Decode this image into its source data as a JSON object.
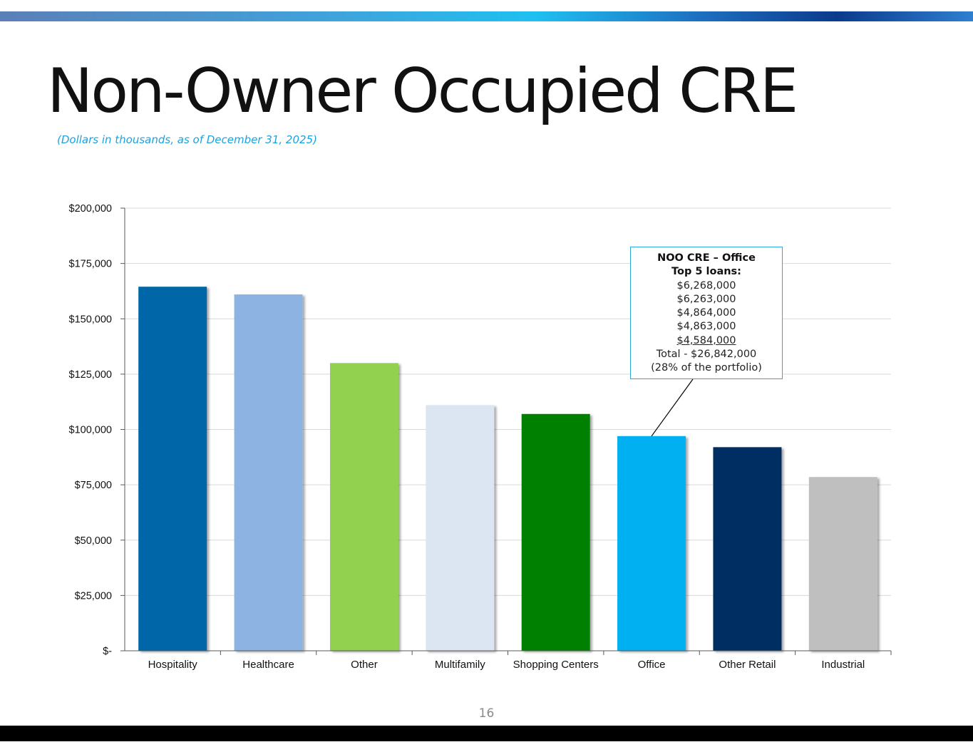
{
  "slide": {
    "title": "Non-Owner Occupied CRE",
    "subtitle": "(Dollars in thousands, as of December 31, 2025)",
    "page_number": "16"
  },
  "callout": {
    "heading": "NOO CRE – Office",
    "subheading": "Top 5 loans:",
    "loans": [
      "$6,268,000",
      "$6,263,000",
      "$4,864,000",
      "$4,863,000",
      "$4,584,000"
    ],
    "total": "Total - $26,842,000",
    "share": "(28% of the portfolio)",
    "target_category": "Office"
  },
  "chart_data": {
    "type": "bar",
    "title": "",
    "xlabel": "",
    "ylabel": "",
    "categories": [
      "Hospitality",
      "Healthcare",
      "Other",
      "Multifamily",
      "Shopping Centers",
      "Office",
      "Other Retail",
      "Industrial"
    ],
    "values": [
      164500,
      161000,
      130000,
      111000,
      107000,
      97000,
      92000,
      78500
    ],
    "colors": [
      "#0066a8",
      "#8db3e2",
      "#92d050",
      "#dce6f2",
      "#008000",
      "#00b0f0",
      "#002d62",
      "#bfbfbf"
    ],
    "ylim": [
      0,
      200000
    ],
    "yticks": [
      0,
      25000,
      50000,
      75000,
      100000,
      125000,
      150000,
      175000,
      200000
    ],
    "ytick_labels": [
      "$-",
      "$25,000",
      "$50,000",
      "$75,000",
      "$100,000",
      "$125,000",
      "$150,000",
      "$175,000",
      "$200,000"
    ],
    "grid": true,
    "legend": "none"
  }
}
